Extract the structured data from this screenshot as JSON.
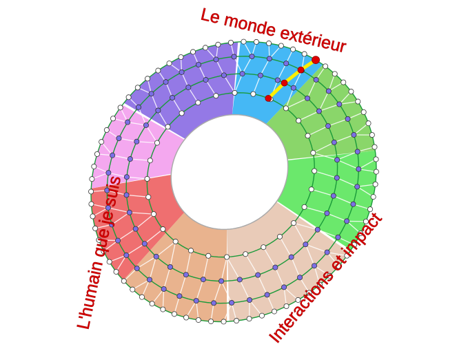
{
  "labels": {
    "top": "Le monde extérieur",
    "left": "L'humain que je suis",
    "bottom_right": "Interactions et impact"
  },
  "sector_colors": [
    "#45b8f5",
    "#8ad66a",
    "#6be86c",
    "#e9cbb8",
    "#e9b38e",
    "#ef6f70",
    "#f4a8ef",
    "#9479e6"
  ],
  "colors": {
    "ring_line": "#1a9a3a",
    "node_fill": "#7b6fe6",
    "edge_node_fill": "#ffffff",
    "highlight_path": "#ffee00",
    "highlight_node": "#e00000",
    "label": "#d40000"
  }
}
